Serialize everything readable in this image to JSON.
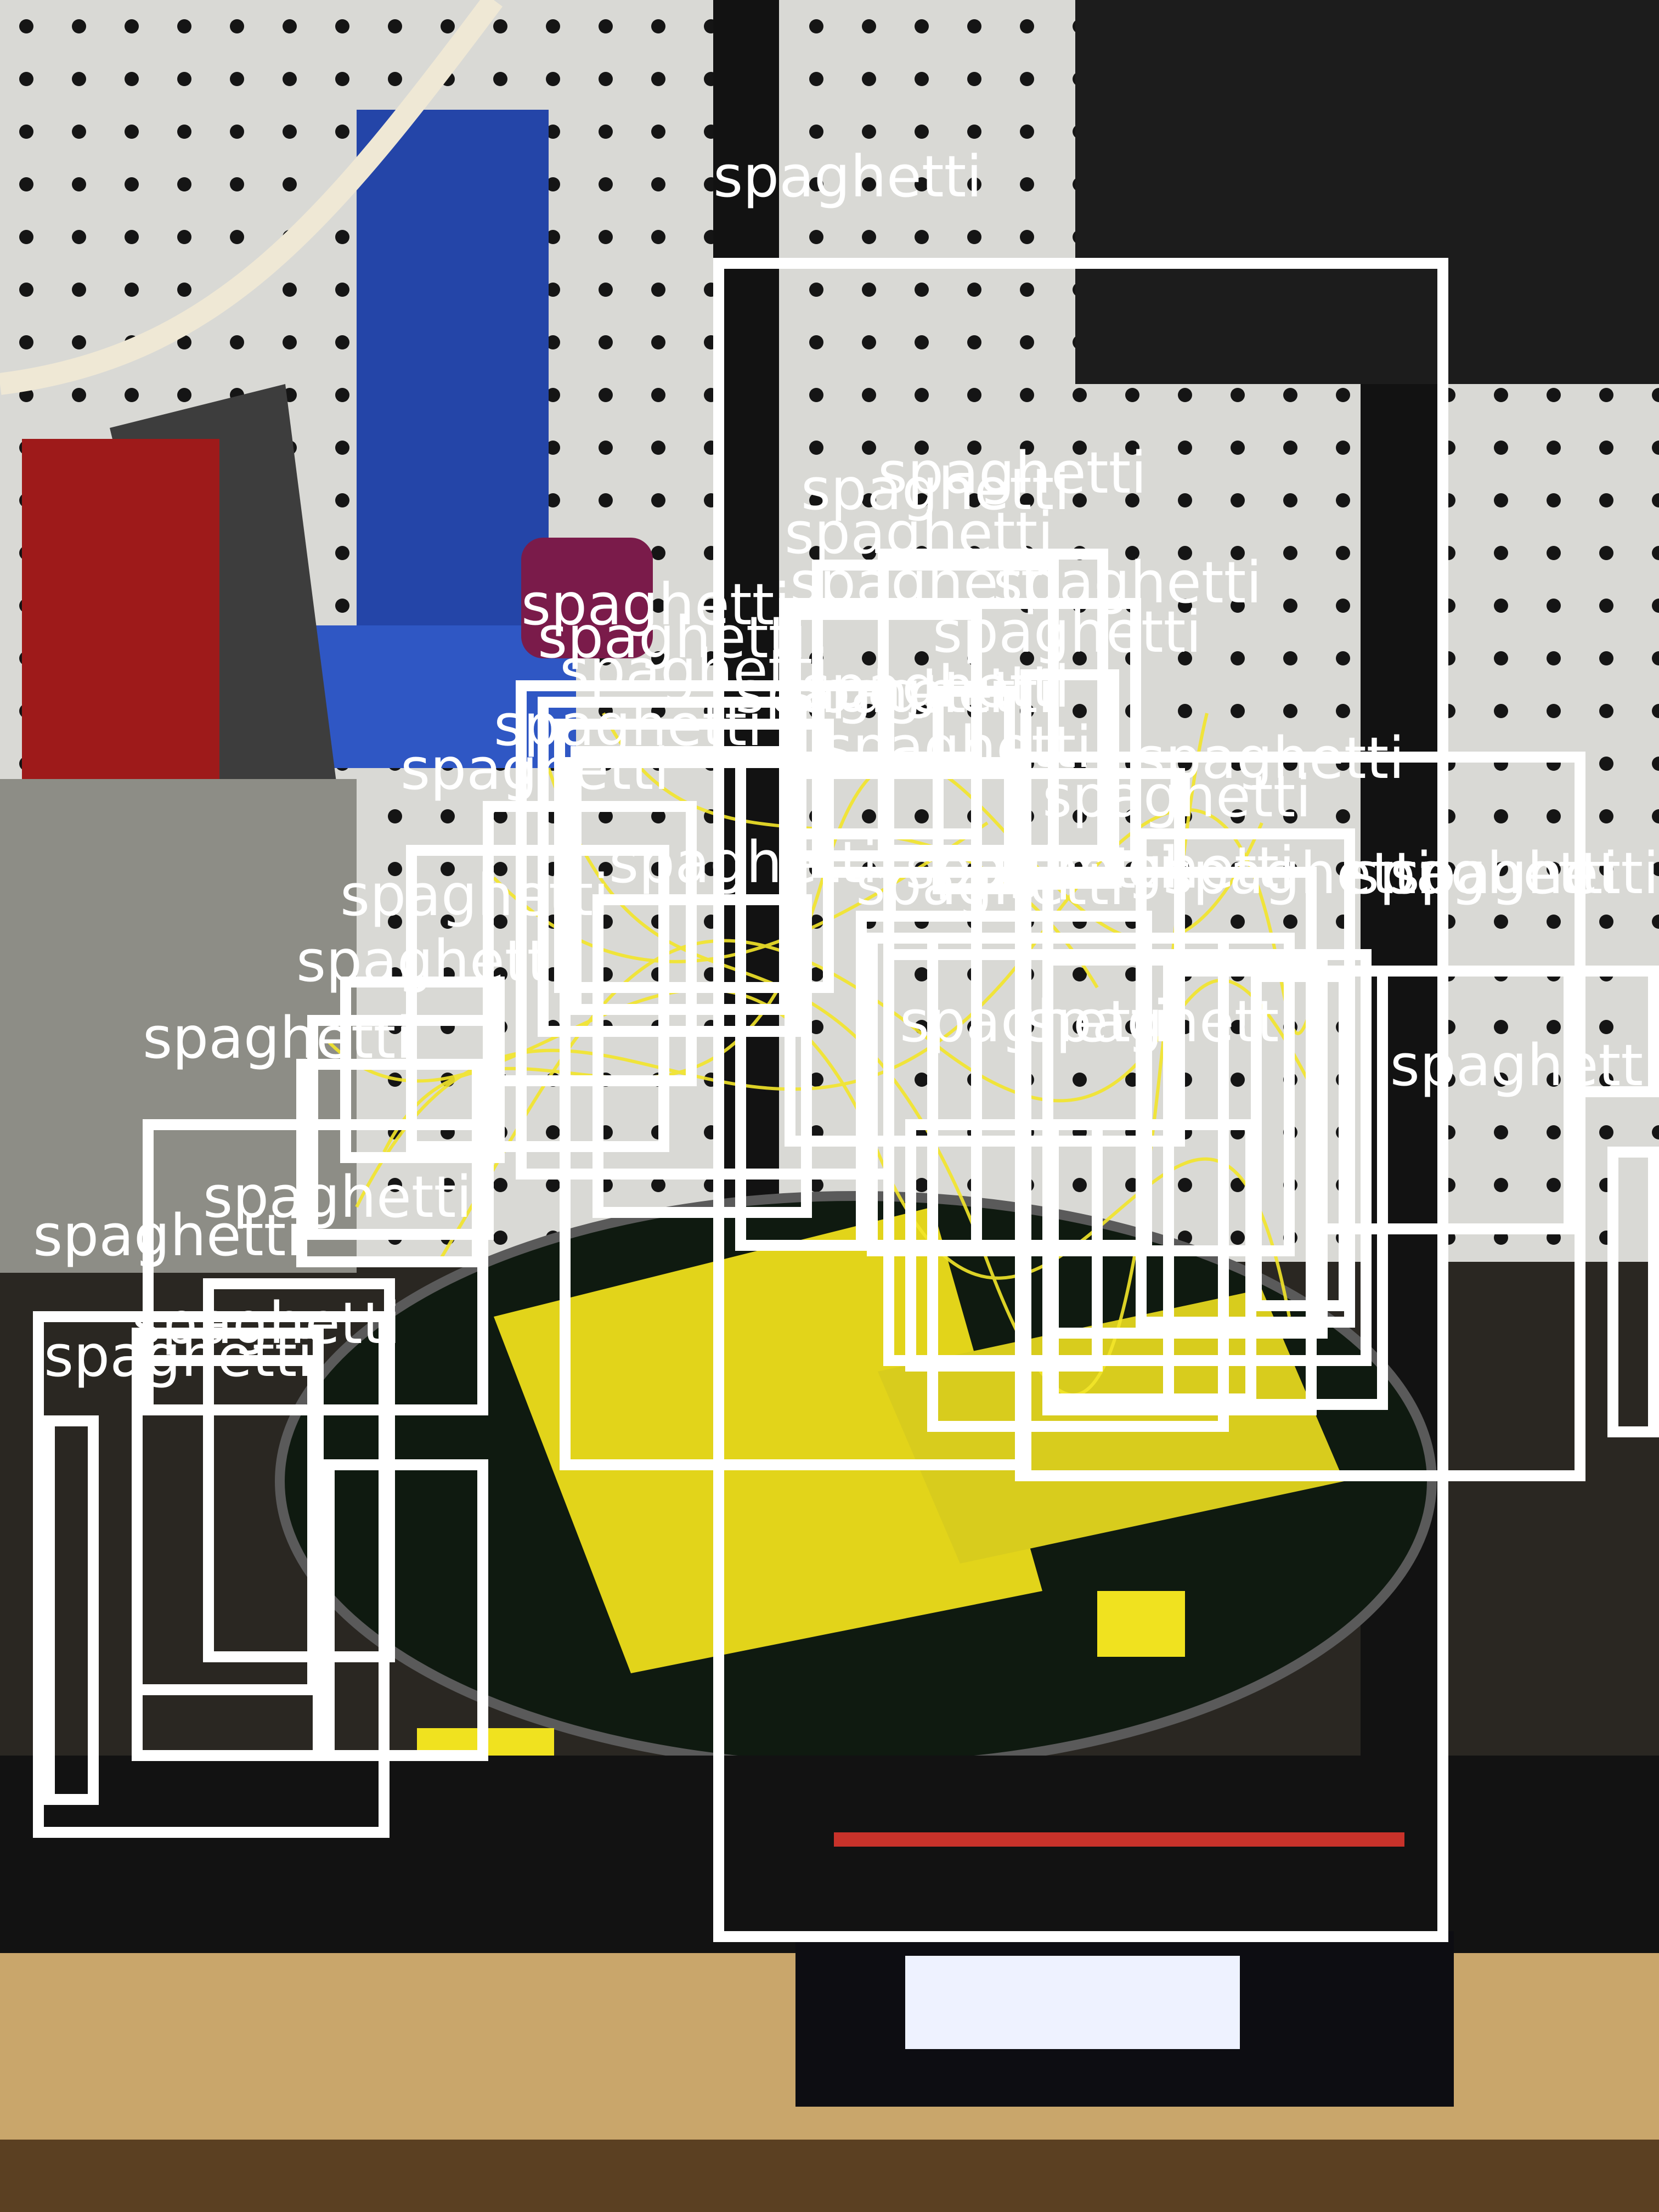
{
  "detections": {
    "label": "spaghetti",
    "count": 48
  },
  "colors": {
    "box": "#ffffff",
    "filament": "#f2e41c",
    "frame": "#141414",
    "pegboard": "#dcdcd8",
    "lcd": "#eef2ff"
  },
  "scene_objects": [
    "pegboard-wall",
    "3d-printer-frame",
    "print-bed",
    "failed-print-spaghetti",
    "lcd-display",
    "workbench"
  ]
}
